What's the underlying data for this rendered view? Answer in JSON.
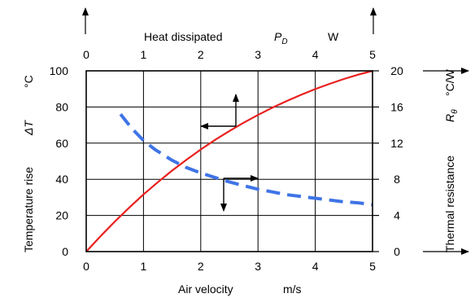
{
  "chart_data": {
    "type": "line",
    "top_axis": {
      "label": "Heat dissipated",
      "symbol": "P",
      "symbol_sub": "D",
      "unit": "W",
      "ticks": [
        "0",
        "1",
        "2",
        "3",
        "4",
        "5"
      ],
      "range": [
        0,
        5
      ]
    },
    "bottom_axis": {
      "label": "Air velocity",
      "unit": "m/s",
      "ticks": [
        "0",
        "1",
        "2",
        "3",
        "4",
        "5"
      ],
      "range": [
        0,
        5
      ]
    },
    "left_axis": {
      "label": "Temperature rise",
      "symbol": "ΔT",
      "unit": "°C",
      "ticks": [
        "0",
        "20",
        "40",
        "60",
        "80",
        "100"
      ],
      "range": [
        0,
        100
      ]
    },
    "right_axis": {
      "label": "Thermal resistance",
      "symbol": "R",
      "symbol_sub": "θ",
      "unit": "°C/W",
      "ticks": [
        "0",
        "4",
        "8",
        "12",
        "16",
        "20"
      ],
      "range": [
        0,
        20
      ]
    },
    "grid": true,
    "series": [
      {
        "color": "#e8201e",
        "style": "solid",
        "x_axis": "top",
        "y_axis": "left",
        "x": [
          0,
          0.25,
          0.5,
          0.75,
          1,
          1.25,
          1.5,
          1.75,
          2,
          2.25,
          2.5,
          2.75,
          3,
          3.25,
          3.5,
          3.75,
          4,
          4.25,
          4.5,
          4.75,
          5
        ],
        "y": [
          0,
          8.5,
          16.6,
          24.3,
          31.6,
          38.4,
          44.8,
          50.8,
          56.5,
          61.8,
          66.7,
          71.3,
          75.6,
          79.6,
          83.3,
          86.7,
          89.9,
          92.8,
          95.5,
          97.9,
          100
        ]
      },
      {
        "color": "#3f74e6",
        "style": "dashed",
        "x_axis": "bottom",
        "y_axis": "right",
        "x": [
          0.6,
          0.8,
          1.0,
          1.2,
          1.5,
          1.75,
          2.0,
          2.25,
          2.5,
          2.75,
          3.0,
          3.25,
          3.5,
          3.75,
          4.0,
          4.25,
          4.5,
          4.75,
          5.0
        ],
        "y": [
          15.2,
          13.6,
          12.3,
          11.3,
          10.1,
          9.3,
          8.7,
          8.2,
          7.7,
          7.3,
          6.9,
          6.6,
          6.3,
          6.1,
          5.9,
          5.7,
          5.5,
          5.4,
          5.2
        ]
      }
    ]
  }
}
